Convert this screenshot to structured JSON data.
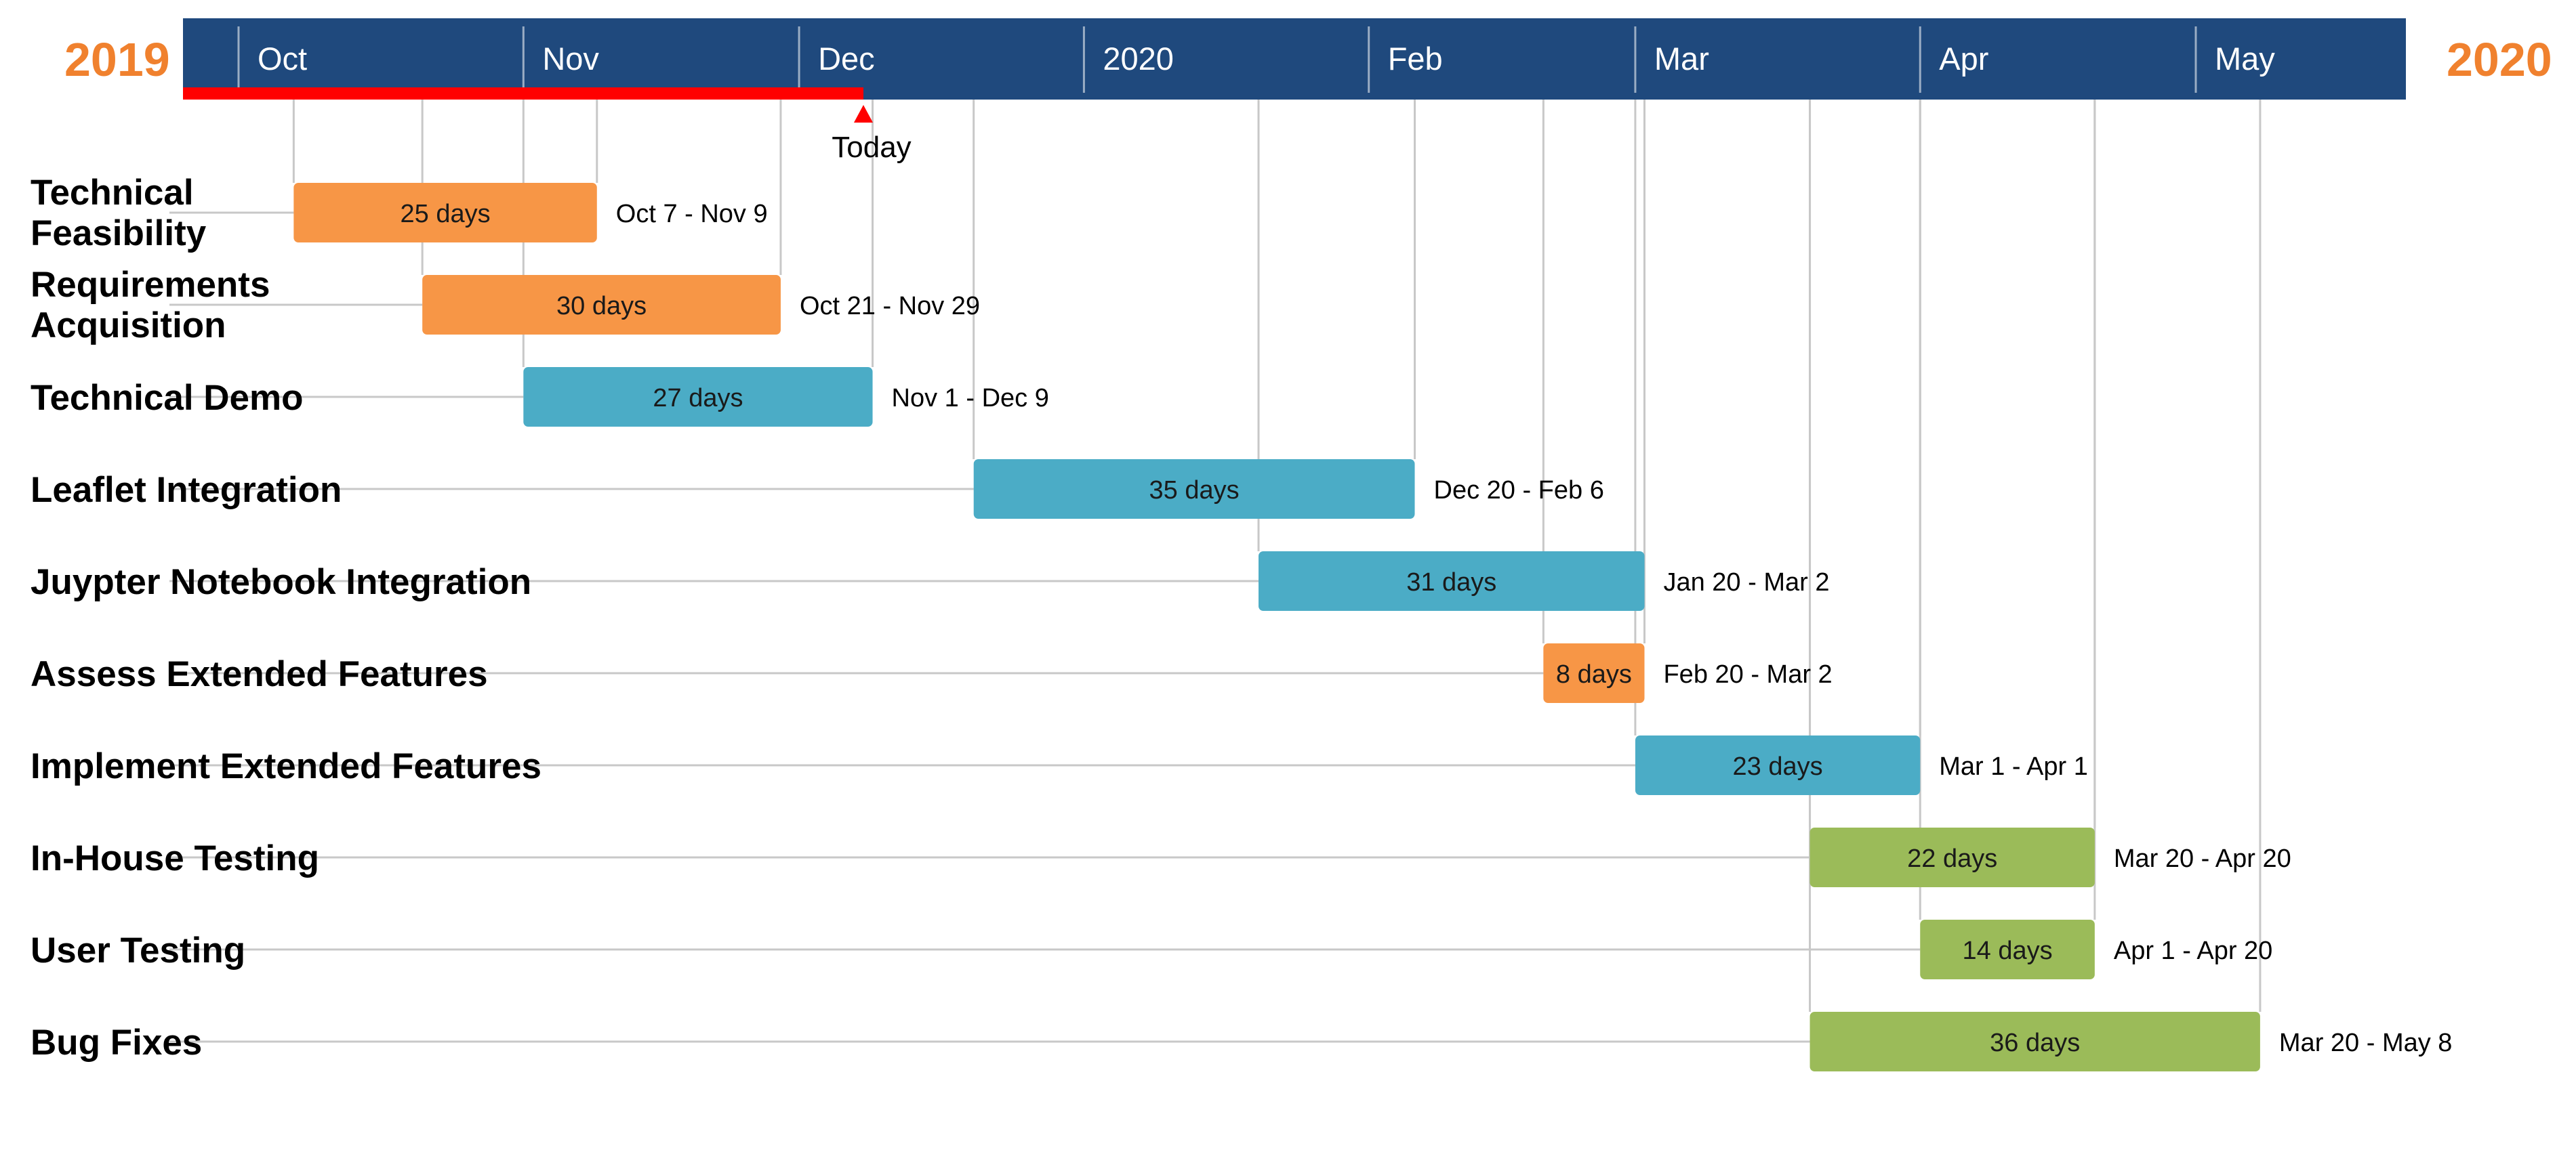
{
  "chart_data": {
    "type": "gantt",
    "timeline": {
      "start_year_label": "2019",
      "end_year_label": "2020",
      "ticks": [
        {
          "label": "Oct",
          "date": "2019-10-01"
        },
        {
          "label": "Nov",
          "date": "2019-11-01"
        },
        {
          "label": "Dec",
          "date": "2019-12-01"
        },
        {
          "label": "2020",
          "date": "2020-01-01"
        },
        {
          "label": "Feb",
          "date": "2020-02-01"
        },
        {
          "label": "Mar",
          "date": "2020-03-01"
        },
        {
          "label": "Apr",
          "date": "2020-04-01"
        },
        {
          "label": "May",
          "date": "2020-05-01"
        }
      ],
      "range": [
        "2019-09-18",
        "2020-05-31"
      ]
    },
    "today": {
      "label": "Today",
      "date": "2019-12-08"
    },
    "tasks": [
      {
        "name_lines": [
          "Technical",
          "Feasibility"
        ],
        "start": "2019-10-07",
        "end": "2019-11-09",
        "duration_label": "25 days",
        "range_label": "Oct 7 - Nov 9",
        "color": "#F79646"
      },
      {
        "name_lines": [
          "Requirements",
          "Acquisition"
        ],
        "start": "2019-10-21",
        "end": "2019-11-29",
        "duration_label": "30 days",
        "range_label": "Oct 21 - Nov 29",
        "color": "#F79646"
      },
      {
        "name_lines": [
          "Technical Demo"
        ],
        "start": "2019-11-01",
        "end": "2019-12-09",
        "duration_label": "27 days",
        "range_label": "Nov 1 - Dec 9",
        "color": "#4BACC6"
      },
      {
        "name_lines": [
          "Leaflet Integration"
        ],
        "start": "2019-12-20",
        "end": "2020-02-06",
        "duration_label": "35 days",
        "range_label": "Dec 20 - Feb 6",
        "color": "#4BACC6"
      },
      {
        "name_lines": [
          "Juypter Notebook Integration"
        ],
        "start": "2020-01-20",
        "end": "2020-03-02",
        "duration_label": "31 days",
        "range_label": "Jan 20 - Mar 2",
        "color": "#4BACC6"
      },
      {
        "name_lines": [
          "Assess Extended Features"
        ],
        "start": "2020-02-20",
        "end": "2020-03-02",
        "duration_label": "8 days",
        "range_label": "Feb 20 - Mar 2",
        "color": "#F79646"
      },
      {
        "name_lines": [
          "Implement Extended Features"
        ],
        "start": "2020-03-01",
        "end": "2020-04-01",
        "duration_label": "23 days",
        "range_label": "Mar 1 - Apr 1",
        "color": "#4BACC6"
      },
      {
        "name_lines": [
          "In-House Testing"
        ],
        "start": "2020-03-20",
        "end": "2020-04-20",
        "duration_label": "22 days",
        "range_label": "Mar 20 - Apr 20",
        "color": "#9BBB59"
      },
      {
        "name_lines": [
          "User Testing"
        ],
        "start": "2020-04-01",
        "end": "2020-04-20",
        "duration_label": "14 days",
        "range_label": "Apr 1 - Apr 20",
        "color": "#9BBB59"
      },
      {
        "name_lines": [
          "Bug Fixes"
        ],
        "start": "2020-03-20",
        "end": "2020-05-08",
        "duration_label": "36 days",
        "range_label": "Mar 20 - May 8",
        "color": "#9BBB59"
      }
    ],
    "colors": {
      "header": "#1F497D",
      "year": "#F0812E",
      "today_bar": "#FF0000",
      "gridline": "#C8C8C8"
    }
  }
}
